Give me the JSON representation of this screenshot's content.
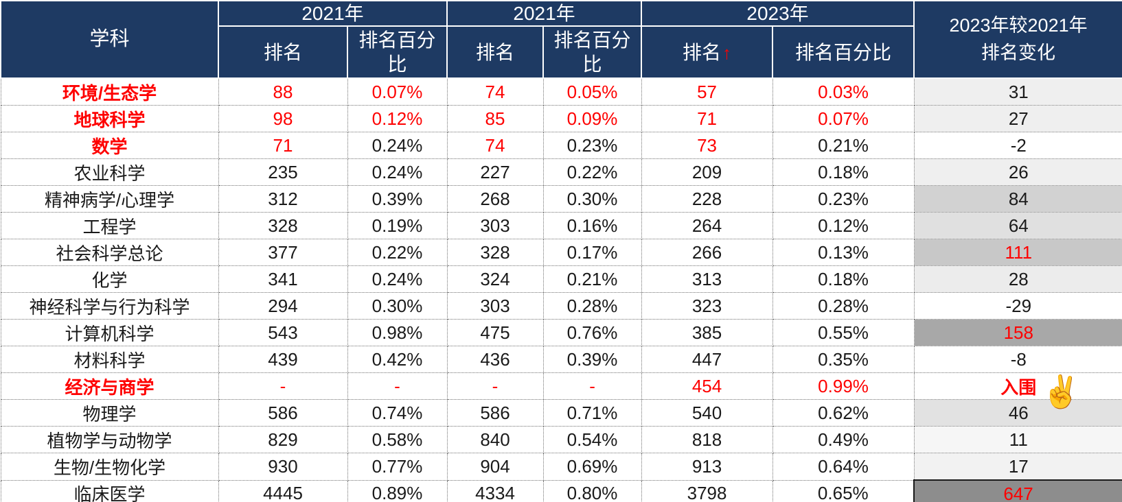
{
  "colors": {
    "header_bg": "#1e3a63",
    "header_text": "#ffffff",
    "red": "#fe0000",
    "body_text": "#1a1a1a",
    "grid_dotted": "#707070",
    "change_scale_max": "#8d8d8d"
  },
  "header": {
    "subject_label": "学科",
    "groups": [
      {
        "label": "2021年",
        "rank_label": "排名",
        "pct_label": "排名百分比"
      },
      {
        "label": "2021年",
        "rank_label": "排名",
        "pct_label": "排名百分比"
      },
      {
        "label": "2023年",
        "rank_label": "排名",
        "arrow": "↑",
        "pct_label": "排名百分比"
      }
    ],
    "change_label": "2023年较2021年\n排名变化"
  },
  "chart_data": {
    "type": "table",
    "columns": [
      "学科",
      "2021年 排名",
      "2021年 排名百分比",
      "2021年 排名",
      "2021年 排名百分比",
      "2023年 排名",
      "2023年 排名百分比",
      "2023年较2021年 排名变化"
    ],
    "rows": [
      {
        "subject": "环境/生态学",
        "red_subject": true,
        "values": [
          "88",
          "0.07%",
          "74",
          "0.05%",
          "57",
          "0.03%"
        ],
        "red_values": [
          true,
          true,
          true,
          true,
          true,
          true
        ],
        "change": "31",
        "red_change": false,
        "change_bg": "#efefef"
      },
      {
        "subject": "地球科学",
        "red_subject": true,
        "values": [
          "98",
          "0.12%",
          "85",
          "0.09%",
          "71",
          "0.07%"
        ],
        "red_values": [
          true,
          true,
          true,
          true,
          true,
          true
        ],
        "change": "27",
        "red_change": false,
        "change_bg": "#efefef"
      },
      {
        "subject": "数学",
        "red_subject": true,
        "values": [
          "71",
          "0.24%",
          "74",
          "0.23%",
          "73",
          "0.21%"
        ],
        "red_values": [
          true,
          false,
          true,
          false,
          true,
          false
        ],
        "change": "-2",
        "red_change": false,
        "change_bg": "#ffffff"
      },
      {
        "subject": "农业科学",
        "red_subject": false,
        "values": [
          "235",
          "0.24%",
          "227",
          "0.22%",
          "209",
          "0.18%"
        ],
        "red_values": [
          false,
          false,
          false,
          false,
          false,
          false
        ],
        "change": "26",
        "red_change": false,
        "change_bg": "#efefef"
      },
      {
        "subject": "精神病学/心理学",
        "red_subject": false,
        "values": [
          "312",
          "0.39%",
          "268",
          "0.30%",
          "228",
          "0.23%"
        ],
        "red_values": [
          false,
          false,
          false,
          false,
          false,
          false
        ],
        "change": "84",
        "red_change": false,
        "change_bg": "#d2d2d2"
      },
      {
        "subject": "工程学",
        "red_subject": false,
        "values": [
          "328",
          "0.19%",
          "303",
          "0.16%",
          "264",
          "0.12%"
        ],
        "red_values": [
          false,
          false,
          false,
          false,
          false,
          false
        ],
        "change": "64",
        "red_change": false,
        "change_bg": "#e0e0e0"
      },
      {
        "subject": "社会科学总论",
        "red_subject": false,
        "values": [
          "377",
          "0.22%",
          "328",
          "0.17%",
          "266",
          "0.13%"
        ],
        "red_values": [
          false,
          false,
          false,
          false,
          false,
          false
        ],
        "change": "111",
        "red_change": true,
        "change_bg": "#c8c8c8"
      },
      {
        "subject": "化学",
        "red_subject": false,
        "values": [
          "341",
          "0.24%",
          "324",
          "0.21%",
          "313",
          "0.18%"
        ],
        "red_values": [
          false,
          false,
          false,
          false,
          false,
          false
        ],
        "change": "28",
        "red_change": false,
        "change_bg": "#ececec"
      },
      {
        "subject": "神经科学与行为科学",
        "red_subject": false,
        "values": [
          "294",
          "0.30%",
          "303",
          "0.28%",
          "323",
          "0.28%"
        ],
        "red_values": [
          false,
          false,
          false,
          false,
          false,
          false
        ],
        "change": "-29",
        "red_change": false,
        "change_bg": "#ffffff"
      },
      {
        "subject": "计算机科学",
        "red_subject": false,
        "values": [
          "543",
          "0.98%",
          "475",
          "0.76%",
          "385",
          "0.55%"
        ],
        "red_values": [
          false,
          false,
          false,
          false,
          false,
          false
        ],
        "change": "158",
        "red_change": true,
        "change_bg": "#a8a8a8"
      },
      {
        "subject": "材料科学",
        "red_subject": false,
        "values": [
          "439",
          "0.42%",
          "436",
          "0.39%",
          "447",
          "0.35%"
        ],
        "red_values": [
          false,
          false,
          false,
          false,
          false,
          false
        ],
        "change": "-8",
        "red_change": false,
        "change_bg": "#ffffff"
      },
      {
        "subject": "经济与商学",
        "red_subject": true,
        "values": [
          "-",
          "-",
          "-",
          "-",
          "454",
          "0.99%"
        ],
        "red_values": [
          true,
          true,
          true,
          true,
          true,
          true
        ],
        "change": "入围",
        "red_change": true,
        "bold_change": true,
        "change_bg": "#ffffff",
        "change_emoji": "✌️"
      },
      {
        "subject": "物理学",
        "red_subject": false,
        "values": [
          "586",
          "0.74%",
          "586",
          "0.71%",
          "540",
          "0.62%"
        ],
        "red_values": [
          false,
          false,
          false,
          false,
          false,
          false
        ],
        "change": "46",
        "red_change": false,
        "change_bg": "#e2e2e2"
      },
      {
        "subject": "植物学与动物学",
        "red_subject": false,
        "values": [
          "829",
          "0.58%",
          "840",
          "0.54%",
          "818",
          "0.49%"
        ],
        "red_values": [
          false,
          false,
          false,
          false,
          false,
          false
        ],
        "change": "11",
        "red_change": false,
        "change_bg": "#f6f6f6"
      },
      {
        "subject": "生物/生物化学",
        "red_subject": false,
        "values": [
          "930",
          "0.77%",
          "904",
          "0.69%",
          "913",
          "0.64%"
        ],
        "red_values": [
          false,
          false,
          false,
          false,
          false,
          false
        ],
        "change": "17",
        "red_change": false,
        "change_bg": "#f2f2f2"
      },
      {
        "subject": "临床医学",
        "red_subject": false,
        "values": [
          "4445",
          "0.89%",
          "4334",
          "0.80%",
          "3798",
          "0.65%"
        ],
        "red_values": [
          false,
          false,
          false,
          false,
          false,
          false
        ],
        "change": "647",
        "red_change": true,
        "change_bg": "#8d8d8d",
        "change_solid_border": true
      }
    ]
  }
}
